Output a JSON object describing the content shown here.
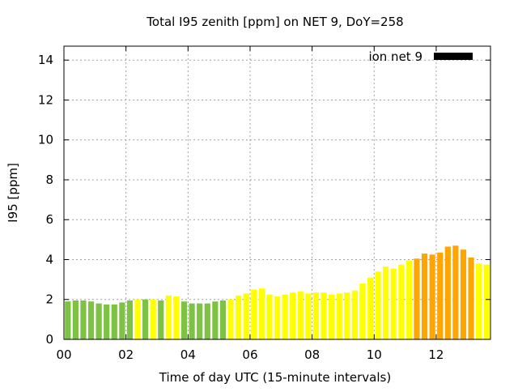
{
  "chart_data": {
    "type": "bar",
    "title": "Total I95 zenith [ppm] on NET 9, DoY=258",
    "xlabel": "Time of day UTC (15-minute intervals)",
    "ylabel": "I95 [ppm]",
    "x_unit": "hours UTC",
    "xlim": [
      0,
      13.75
    ],
    "ylim": [
      0,
      14.7
    ],
    "x_ticks": [
      "00",
      "02",
      "04",
      "06",
      "08",
      "10",
      "12"
    ],
    "x_tick_values": [
      0,
      2,
      4,
      6,
      8,
      10,
      12
    ],
    "y_ticks": [
      "0",
      "2",
      "4",
      "6",
      "8",
      "10",
      "12",
      "14"
    ],
    "y_tick_values": [
      0,
      2,
      4,
      6,
      8,
      10,
      12,
      14
    ],
    "grid": true,
    "legend": {
      "position": "top-right",
      "entries": [
        {
          "label": "ion net 9",
          "color": "#000000"
        }
      ]
    },
    "colors": {
      "green": "#7dc242",
      "yellow": "#ffff00",
      "orange": "#ffa500"
    },
    "series": [
      {
        "x": [
          0.125,
          0.375,
          0.625,
          0.875,
          1.125,
          1.375,
          1.625,
          1.875,
          2.125,
          2.375,
          2.625,
          2.875,
          3.125,
          3.375,
          3.625,
          3.875,
          4.125,
          4.375,
          4.625,
          4.875,
          5.125,
          5.375,
          5.625,
          5.875,
          6.125,
          6.375,
          6.625,
          6.875,
          7.125,
          7.375,
          7.625,
          7.875,
          8.125,
          8.375,
          8.625,
          8.875,
          9.125,
          9.375,
          9.625,
          9.875,
          10.125,
          10.375,
          10.625,
          10.875,
          11.125,
          11.375,
          11.625,
          11.875,
          12.125,
          12.375,
          12.625,
          12.875,
          13.125,
          13.375,
          13.625
        ],
        "values": [
          1.9,
          1.95,
          1.95,
          1.9,
          1.8,
          1.75,
          1.75,
          1.85,
          1.95,
          2.0,
          2.0,
          2.0,
          1.95,
          2.2,
          2.15,
          1.9,
          1.8,
          1.8,
          1.8,
          1.9,
          1.95,
          2.0,
          2.2,
          2.3,
          2.5,
          2.55,
          2.25,
          2.15,
          2.25,
          2.35,
          2.4,
          2.3,
          2.35,
          2.35,
          2.25,
          2.3,
          2.35,
          2.45,
          2.8,
          3.1,
          3.4,
          3.65,
          3.55,
          3.75,
          3.95,
          4.05,
          4.3,
          4.25,
          4.35,
          4.65,
          4.7,
          4.5,
          4.1,
          3.8,
          3.75
        ],
        "colors": [
          "green",
          "green",
          "green",
          "green",
          "green",
          "green",
          "green",
          "green",
          "green",
          "yellow",
          "green",
          "yellow",
          "green",
          "yellow",
          "yellow",
          "green",
          "green",
          "green",
          "green",
          "green",
          "green",
          "yellow",
          "yellow",
          "yellow",
          "yellow",
          "yellow",
          "yellow",
          "yellow",
          "yellow",
          "yellow",
          "yellow",
          "yellow",
          "yellow",
          "yellow",
          "yellow",
          "yellow",
          "yellow",
          "yellow",
          "yellow",
          "yellow",
          "yellow",
          "yellow",
          "yellow",
          "yellow",
          "yellow",
          "orange",
          "orange",
          "orange",
          "orange",
          "orange",
          "orange",
          "orange",
          "orange",
          "yellow",
          "yellow"
        ]
      }
    ]
  }
}
